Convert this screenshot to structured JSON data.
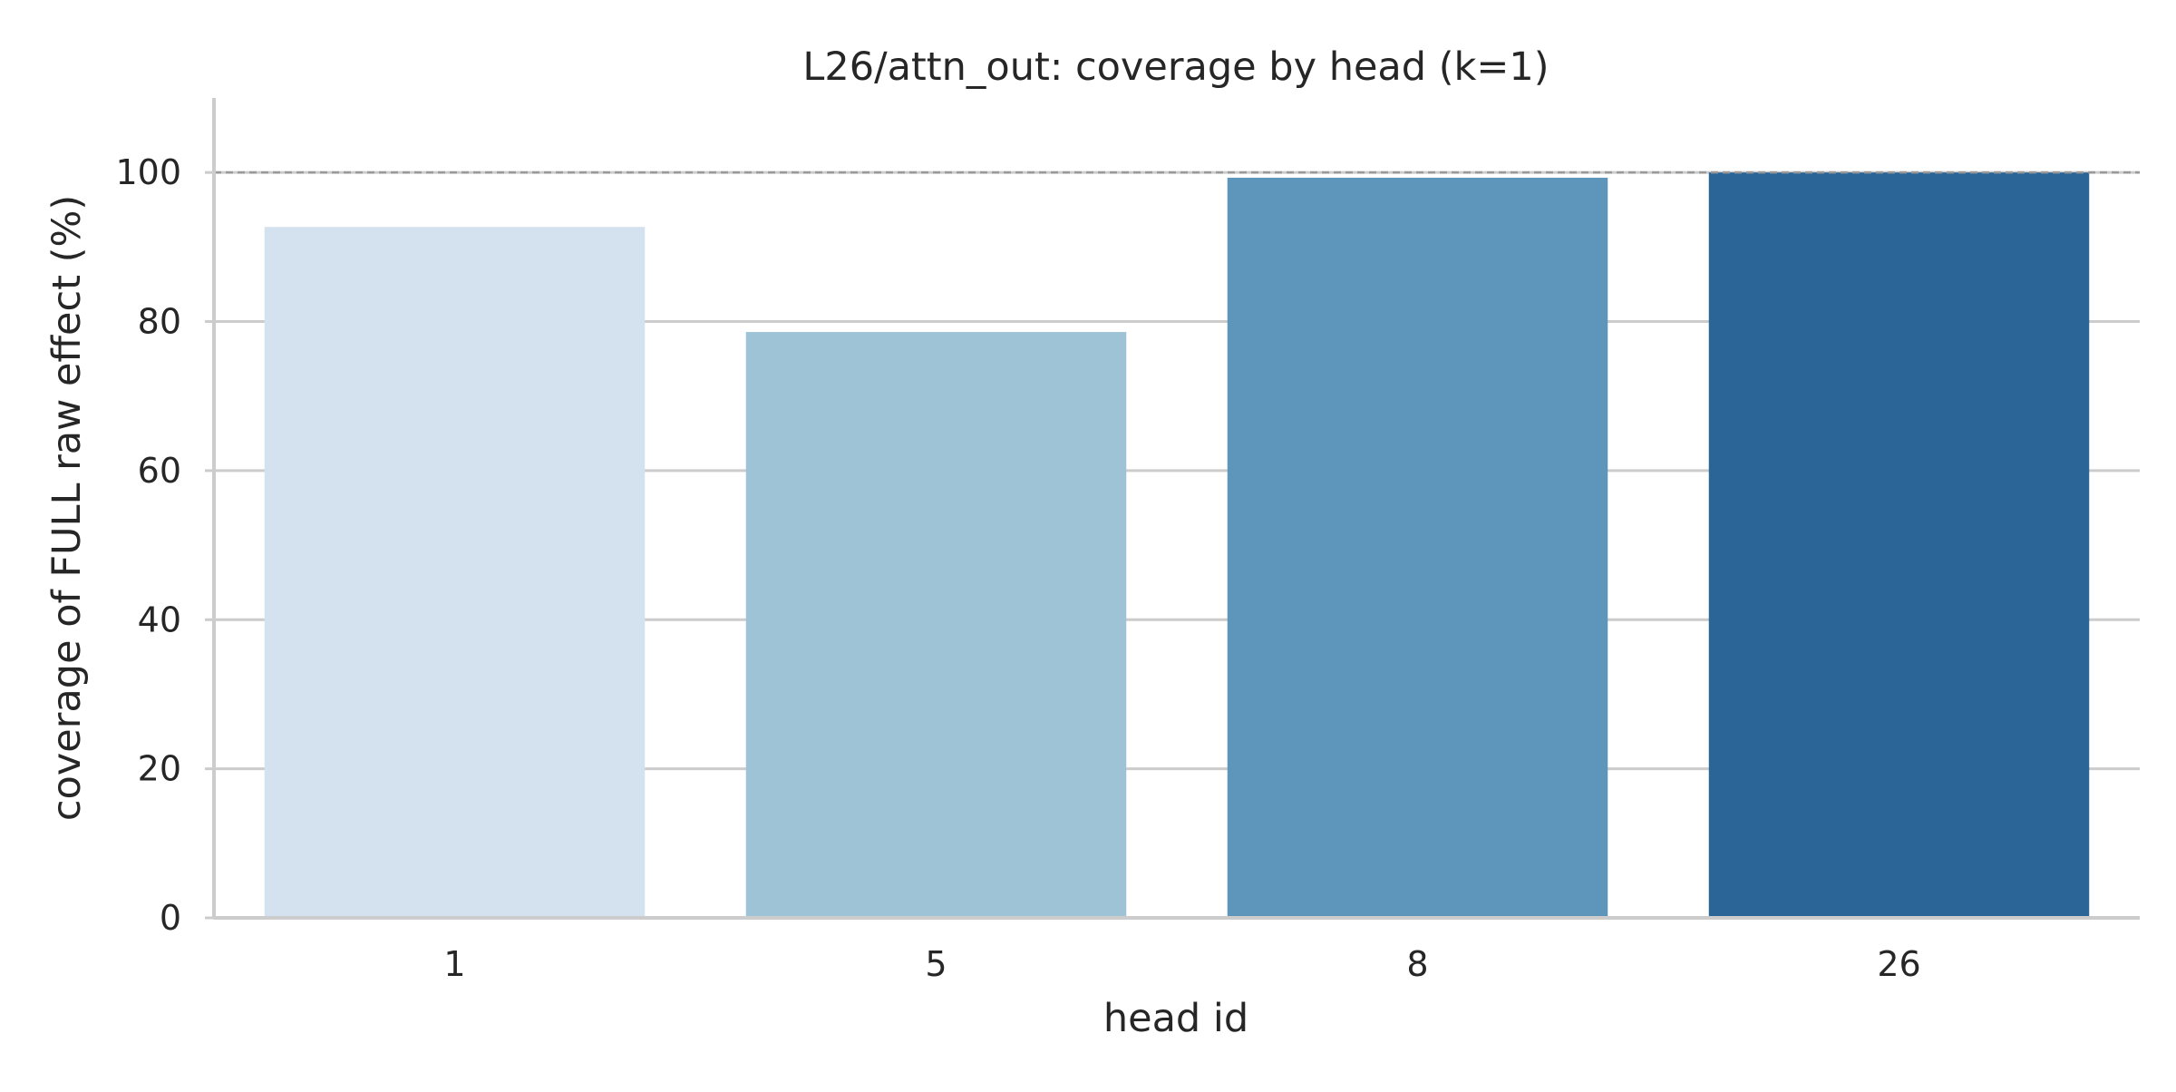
{
  "chart_data": {
    "type": "bar",
    "title": "L26/attn_out: coverage by head (k=1)",
    "xlabel": "head id",
    "ylabel": "coverage of FULL raw effect (%)",
    "categories": [
      "1",
      "5",
      "8",
      "26"
    ],
    "values": [
      92.7,
      78.6,
      99.3,
      100.0
    ],
    "colors": [
      "#d4e2ef",
      "#9ec2d6",
      "#5d95bb",
      "#2b6598"
    ],
    "ylim": [
      0,
      110
    ],
    "yticks": [
      0,
      20,
      40,
      60,
      80,
      100
    ],
    "reference_line": {
      "y": 100,
      "style": "dashed",
      "color": "#999999"
    },
    "grid": "horizontal",
    "legend": "none"
  }
}
